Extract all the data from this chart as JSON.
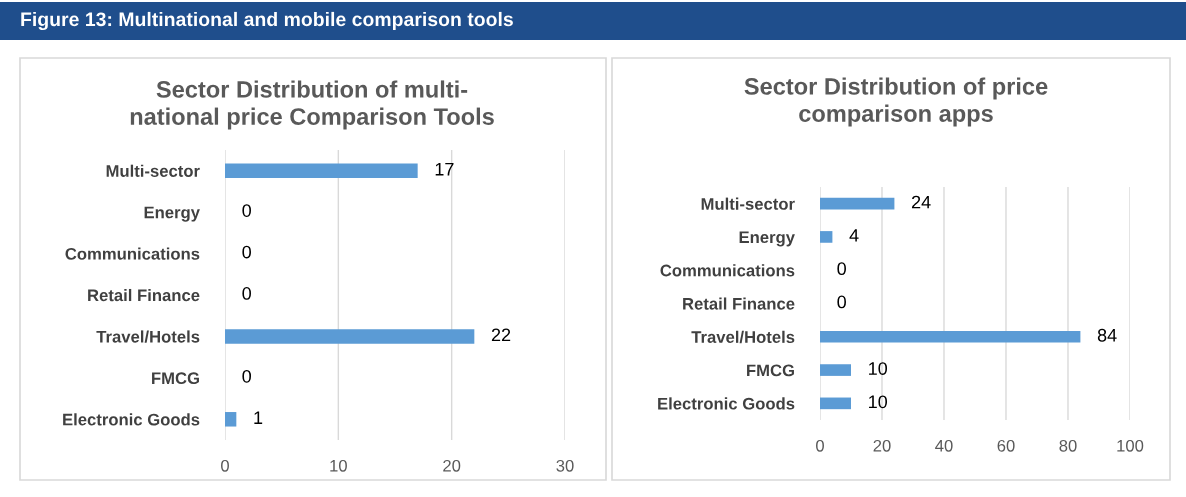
{
  "chart_data": [
    {
      "type": "bar",
      "orientation": "horizontal",
      "title": "Sector Distribution of multi-\nnational price Comparison Tools",
      "annotations": [
        "Figure 13: Multinational and mobile comparison tools"
      ],
      "categories": [
        "Multi-sector",
        "Energy",
        "Communications",
        "Retail Finance",
        "Travel/Hotels",
        "FMCG",
        "Electronic Goods"
      ],
      "values": [
        17,
        0,
        0,
        0,
        22,
        0,
        1
      ],
      "color": "#5b9bd5",
      "xlim": [
        0,
        30
      ],
      "xticks": [
        0,
        10,
        20,
        30
      ],
      "grid": "x",
      "data_labels": true
    },
    {
      "type": "bar",
      "orientation": "horizontal",
      "title": "Sector Distribution of price\ncomparison apps",
      "categories": [
        "Multi-sector",
        "Energy",
        "Communications",
        "Retail Finance",
        "Travel/Hotels",
        "FMCG",
        "Electronic Goods"
      ],
      "values": [
        24,
        4,
        0,
        0,
        84,
        10,
        10
      ],
      "color": "#5b9bd5",
      "xlim": [
        0,
        100
      ],
      "xticks": [
        0,
        20,
        40,
        60,
        80,
        100
      ],
      "grid": "x",
      "data_labels": true
    }
  ]
}
